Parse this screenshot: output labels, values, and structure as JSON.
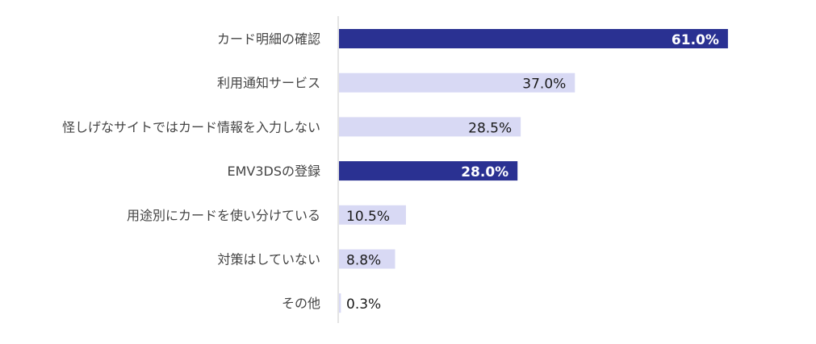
{
  "chart_data": {
    "type": "bar",
    "orientation": "horizontal",
    "categories": [
      "カード明細の確認",
      "利用通知サービス",
      "怪しげなサイトではカード情報を入力しない",
      "EMV3DSの登録",
      "用途別にカードを使い分けている",
      "対策はしていない",
      "その他"
    ],
    "values": [
      61.0,
      37.0,
      28.5,
      28.0,
      10.5,
      8.8,
      0.3
    ],
    "value_labels": [
      "61.0%",
      "37.0%",
      "28.5%",
      "28.0%",
      "10.5%",
      "8.8%",
      "0.3%"
    ],
    "highlighted": [
      true,
      false,
      false,
      true,
      false,
      false,
      false
    ],
    "xlim": [
      0,
      100
    ],
    "grid": false,
    "legend": "none",
    "colors": {
      "highlight": "#2a3192",
      "normal": "#d8d9f4",
      "label_on_highlight": "#ffffff",
      "label_normal": "#1a1a1a",
      "category_text": "#444444",
      "axis": "#c8c8c8"
    }
  }
}
